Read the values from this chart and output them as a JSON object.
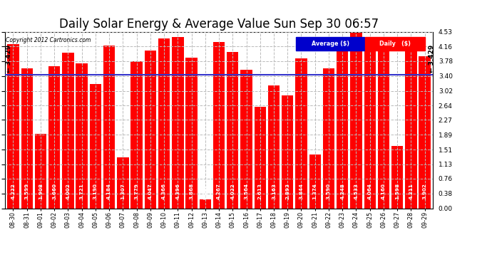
{
  "title": "Daily Solar Energy & Average Value Sun Sep 30 06:57",
  "copyright": "Copyright 2012 Cartronics.com",
  "categories": [
    "08-30",
    "08-31",
    "09-01",
    "09-02",
    "09-03",
    "09-04",
    "09-05",
    "09-06",
    "09-07",
    "09-08",
    "09-09",
    "09-10",
    "09-11",
    "09-12",
    "09-13",
    "09-14",
    "09-15",
    "09-16",
    "09-17",
    "09-18",
    "09-19",
    "09-20",
    "09-21",
    "09-22",
    "09-23",
    "09-24",
    "09-25",
    "09-26",
    "09-27",
    "09-28",
    "09-29"
  ],
  "values": [
    4.222,
    3.599,
    1.908,
    3.66,
    4.002,
    3.721,
    3.19,
    4.184,
    1.307,
    3.779,
    4.047,
    4.366,
    4.396,
    3.868,
    0.227,
    4.267,
    4.022,
    3.564,
    2.613,
    3.163,
    2.893,
    3.844,
    1.374,
    3.59,
    4.248,
    4.533,
    4.064,
    4.16,
    1.598,
    4.211,
    3.902
  ],
  "average": 3.429,
  "bar_color": "#FF0000",
  "avg_line_color": "#3333CC",
  "background_color": "#FFFFFF",
  "plot_bg_color": "#FFFFFF",
  "grid_color": "#BBBBBB",
  "title_fontsize": 12,
  "ylim": [
    0,
    4.53
  ],
  "yticks": [
    0.0,
    0.38,
    0.76,
    1.13,
    1.51,
    1.89,
    2.27,
    2.64,
    3.02,
    3.4,
    3.78,
    4.16,
    4.53
  ],
  "legend_avg_color": "#0000CC",
  "legend_daily_color": "#FF0000",
  "avg_label": "Average ($)",
  "daily_label": "Daily   ($)"
}
